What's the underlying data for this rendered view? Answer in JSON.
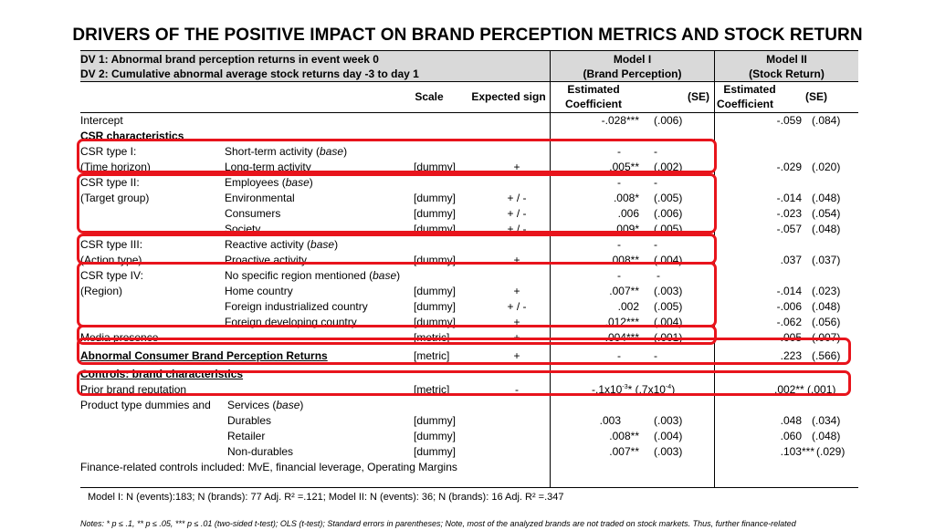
{
  "title": "DRIVERS OF THE POSITIVE IMPACT ON BRAND PERCEPTION METRICS AND STOCK RETURN",
  "header": {
    "dv1": "DV 1: Abnormal brand perception returns in event week 0",
    "dv2": "DV 2: Cumulative abnormal average stock returns day -3 to day 1",
    "model1_name": "Model I",
    "model1_sub": "(Brand Perception)",
    "model2_name": "Model II",
    "model2_sub": "(Stock Return)",
    "scale": "Scale",
    "expected_sign": "Expected sign",
    "est_line1": "Estimated",
    "est_line2": "Coefficient",
    "se": "(SE)"
  },
  "rows": {
    "intercept": {
      "label": "Intercept",
      "m1c": "-.028***",
      "m1s": "(.006)",
      "m2c": "-.059",
      "m2s": "(.084)"
    },
    "csr_char": "CSR characteristics",
    "csr1": {
      "group1": "CSR type I:",
      "group2": "(Time horizon)",
      "base": "Short-term activity",
      "base_tag": "base",
      "item": "Long-term activity",
      "scale": "[dummy]",
      "sign": "+",
      "m1c": ".005**",
      "m1s": "(.002)",
      "m2c": "-.029",
      "m2s": "(.020)"
    },
    "csr2": {
      "group1": "CSR type II:",
      "group2": "(Target group)",
      "base": "Employees",
      "base_tag": "base",
      "items": [
        {
          "label": "Environmental",
          "scale": "[dummy]",
          "sign": "+ / -",
          "m1c": ".008*",
          "m1s": "(.005)",
          "m2c": "-.014",
          "m2s": "(.048)"
        },
        {
          "label": "Consumers",
          "scale": "[dummy]",
          "sign": "+ / -",
          "m1c": ".006",
          "m1s": "(.006)",
          "m2c": "-.023",
          "m2s": "(.054)"
        },
        {
          "label": "Society",
          "scale": "[dummy]",
          "sign": "+ / -",
          "m1c": ".009*",
          "m1s": "(.005)",
          "m2c": "-.057",
          "m2s": "(.048)"
        }
      ]
    },
    "csr3": {
      "group1": "CSR type III:",
      "group2": "(Action type)",
      "base": "Reactive activity",
      "base_tag": "base",
      "item": "Proactive activity",
      "scale": "[dummy]",
      "sign": "+",
      "m1c": ".008**",
      "m1s": "(.004)",
      "m2c": ".037",
      "m2s": "(.037)"
    },
    "csr4": {
      "group1": "CSR type IV:",
      "group2": "(Region)",
      "base": "No specific region mentioned",
      "base_tag": "base",
      "items": [
        {
          "label": "Home country",
          "scale": "[dummy]",
          "sign": "+",
          "m1c": ".007**",
          "m1s": "(.003)",
          "m2c": "-.014",
          "m2s": "(.023)"
        },
        {
          "label": "Foreign industrialized country",
          "scale": "[dummy]",
          "sign": "+ / -",
          "m1c": ".002",
          "m1s": "(.005)",
          "m2c": "-.006",
          "m2s": "(.048)"
        },
        {
          "label": "Foreign developing country",
          "scale": "[dummy]",
          "sign": "+",
          "m1c": ".012***",
          "m1s": "(.004)",
          "m2c": "-.062",
          "m2s": "(.056)"
        }
      ]
    },
    "media": {
      "label": "Media presence",
      "scale": "[metric]",
      "sign": "+",
      "m1c": ".004***",
      "m1s": "(.001)",
      "m2c": ".005",
      "m2s": "(.007)"
    },
    "abcbpr": {
      "label": "Abnormal Consumer Brand Perception Returns",
      "scale": "[metric]",
      "sign": "+",
      "m1c": "-",
      "m1s": "-",
      "m2c": ".223",
      "m2s": "(.566)"
    },
    "controls": "Controls: brand characteristics",
    "prior": {
      "label": "Prior brand reputation",
      "scale": "[metric]",
      "sign": "-",
      "m1": "-.1x10",
      "m1_exp": "-3",
      "m1_mid": "* (.7x10",
      "m1_exp2": "-4",
      "m1_end": ")",
      "m2": ".002** (.001)"
    },
    "product": {
      "label": "Product type dummies and",
      "base": "Services",
      "base_tag": "base",
      "items": [
        {
          "label": "Durables",
          "scale": "[dummy]",
          "m1c": ".003",
          "m1s": "(.003)",
          "m2c": ".048",
          "m2s": "(.034)"
        },
        {
          "label": "Retailer",
          "scale": "[dummy]",
          "m1c": ".008**",
          "m1s": "(.004)",
          "m2c": ".060",
          "m2s": "(.048)"
        },
        {
          "label": "Non-durables",
          "scale": "[dummy]",
          "m1c": ".007**",
          "m1s": "(.003)",
          "m2c": ".103***",
          "m2s": "(.029)"
        }
      ]
    },
    "finance": "Finance-related controls included: MvE, financial leverage, Operating Margins"
  },
  "footer": {
    "model_info_1": "Model I: N (events):183;  N (brands): 77   Adj. R² =.121; Model II:     N (events): 36;  N (brands): 16   Adj. R² =.347",
    "notes": "Notes: * p ≤ .1, ** p ≤ .05, *** p ≤ .01 (two-sided t-test); OLS (t-test); Standard errors in parentheses; Note, most of the analyzed brands are not traded on stock markets. Thus, further finance-related"
  },
  "colors": {
    "highlight": "#e8141c",
    "header_shade": "#d9d9d9"
  }
}
